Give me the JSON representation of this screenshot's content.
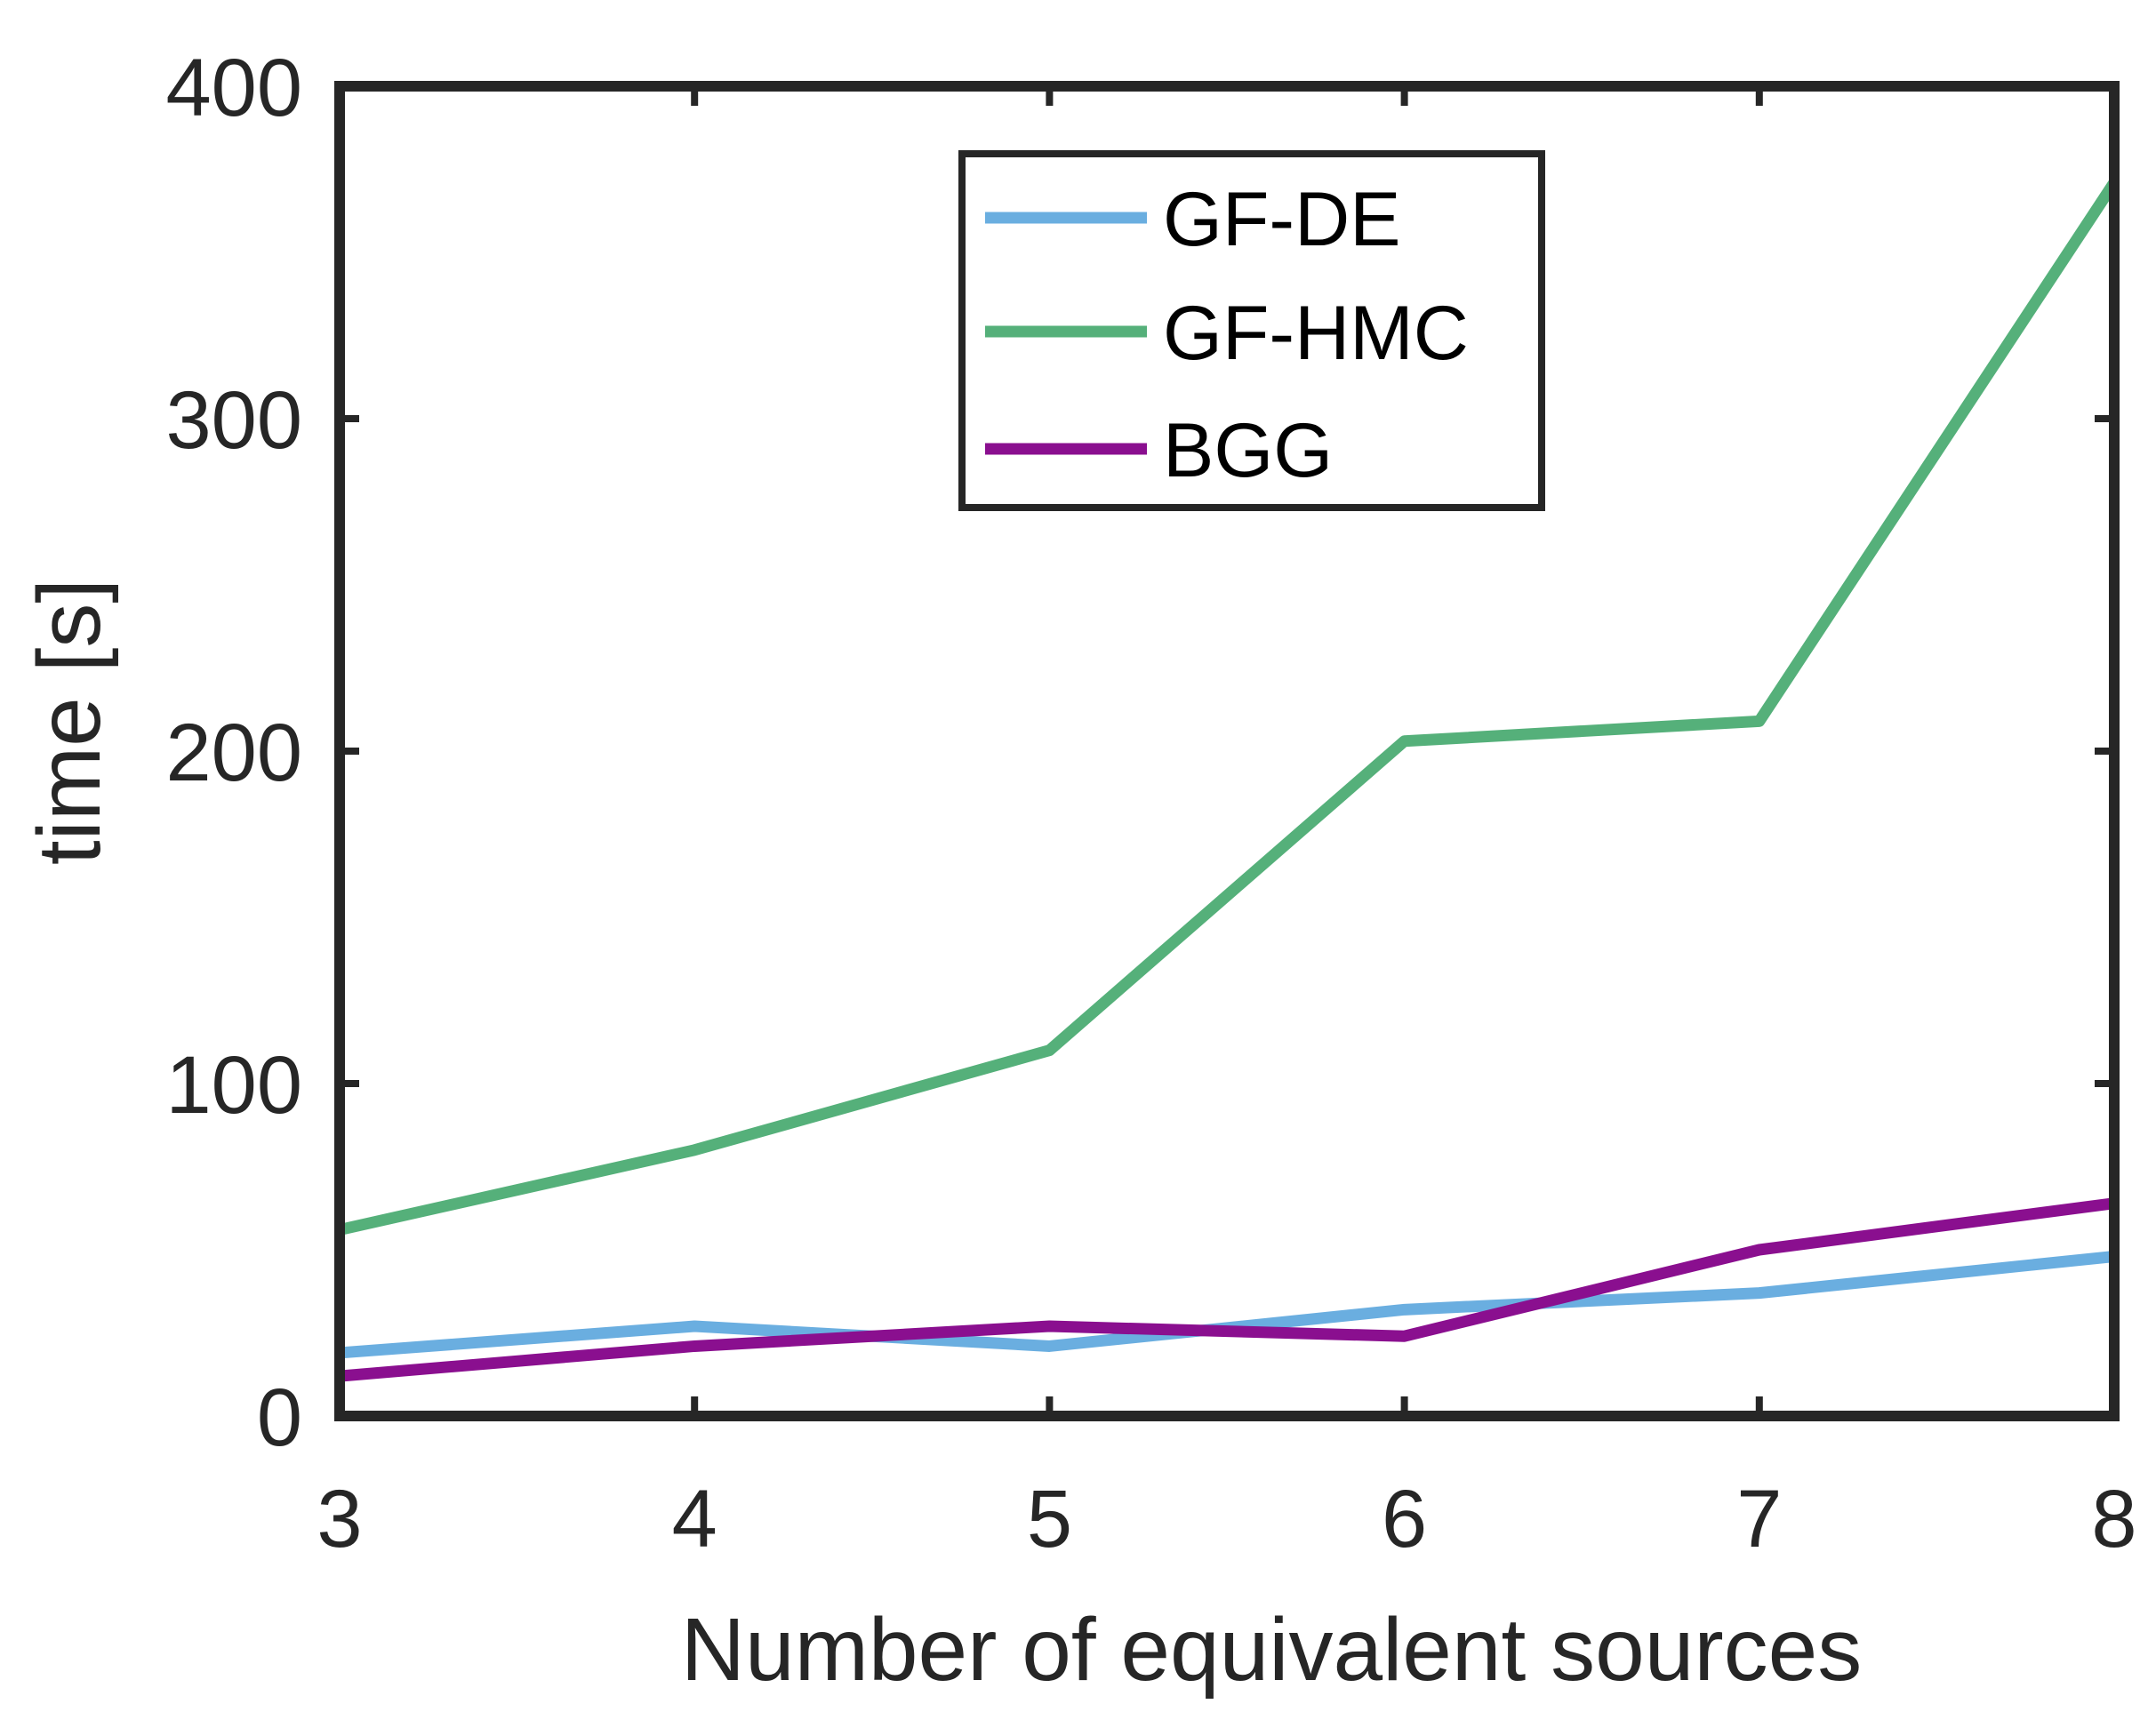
{
  "chart_data": {
    "type": "line",
    "title": "",
    "xlabel": "Number of equivalent sources",
    "ylabel": "time [s]",
    "x": [
      3,
      4,
      5,
      6,
      7,
      8
    ],
    "xlim": [
      3,
      8
    ],
    "ylim": [
      0,
      400
    ],
    "xticks": [
      3,
      4,
      5,
      6,
      7,
      8
    ],
    "yticks": [
      0,
      100,
      200,
      300,
      400
    ],
    "grid": false,
    "legend_position": "top-center",
    "series": [
      {
        "name": "GF-DE",
        "color": "#6aaee0",
        "values": [
          19,
          27,
          21,
          32,
          37,
          48
        ]
      },
      {
        "name": "GF-HMC",
        "color": "#55b07a",
        "values": [
          56,
          80,
          110,
          203,
          209,
          371
        ]
      },
      {
        "name": "BGG",
        "color": "#8a0f8f",
        "values": [
          12,
          21,
          27,
          24,
          50,
          64
        ]
      }
    ]
  }
}
